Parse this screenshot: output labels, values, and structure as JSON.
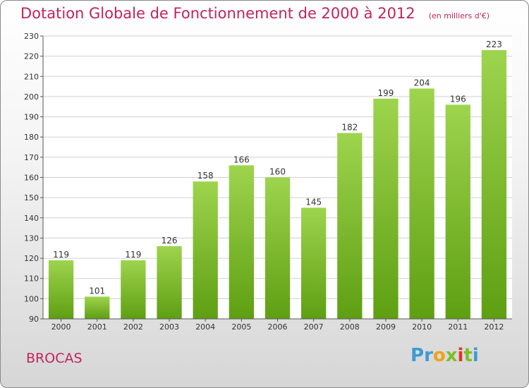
{
  "header": {
    "title": "Dotation Globale de Fonctionnement de 2000 à 2012",
    "unit": "(en milliers d'€)"
  },
  "footer": {
    "commune": "BROCAS",
    "logo_text": "Proxiti"
  },
  "colors": {
    "accent": "#c0245c",
    "bar_light": "#9ed44e",
    "bar_dark": "#5e9f12",
    "grid": "#d0d0d0"
  },
  "chart_data": {
    "type": "bar",
    "categories": [
      "2000",
      "2001",
      "2002",
      "2003",
      "2004",
      "2005",
      "2006",
      "2007",
      "2008",
      "2009",
      "2010",
      "2011",
      "2012"
    ],
    "values": [
      119,
      101,
      119,
      126,
      158,
      166,
      160,
      145,
      182,
      199,
      204,
      196,
      223
    ],
    "ylim": [
      90,
      230
    ],
    "yticks": [
      90,
      100,
      110,
      120,
      130,
      140,
      150,
      160,
      170,
      180,
      190,
      200,
      210,
      220,
      230
    ],
    "grid": true,
    "title": "Dotation Globale de Fonctionnement de 2000 à 2012",
    "xlabel": "",
    "ylabel": ""
  }
}
